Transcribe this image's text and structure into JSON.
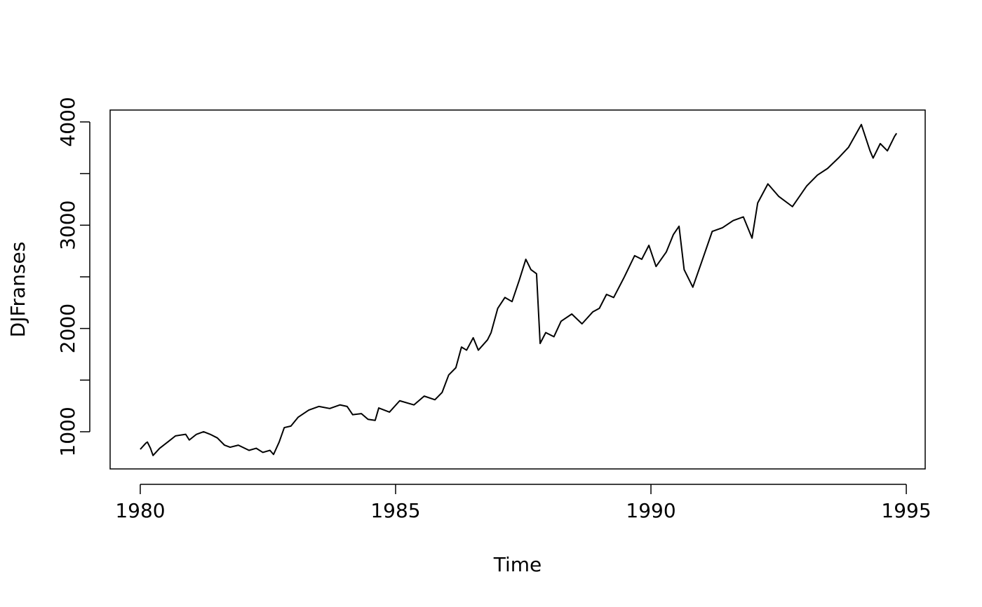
{
  "chart_data": {
    "type": "line",
    "xlabel": "Time",
    "ylabel": "DJFranses",
    "x": [
      1980.0,
      1980.11,
      1980.14,
      1980.2,
      1980.25,
      1980.38,
      1980.55,
      1980.69,
      1980.89,
      1980.96,
      1981.1,
      1981.24,
      1981.37,
      1981.51,
      1981.65,
      1981.76,
      1981.92,
      1982.13,
      1982.27,
      1982.4,
      1982.54,
      1982.61,
      1982.72,
      1982.82,
      1982.95,
      1983.09,
      1983.3,
      1983.5,
      1983.71,
      1983.91,
      1984.05,
      1984.16,
      1984.33,
      1984.46,
      1984.6,
      1984.67,
      1984.88,
      1985.08,
      1985.36,
      1985.56,
      1985.77,
      1985.91,
      1986.04,
      1986.18,
      1986.29,
      1986.39,
      1986.52,
      1986.62,
      1986.8,
      1986.87,
      1987.0,
      1987.14,
      1987.28,
      1987.42,
      1987.55,
      1987.65,
      1987.76,
      1987.83,
      1987.94,
      1988.1,
      1988.24,
      1988.45,
      1988.65,
      1988.86,
      1988.99,
      1989.13,
      1989.27,
      1989.48,
      1989.68,
      1989.82,
      1989.96,
      1990.1,
      1990.3,
      1990.44,
      1990.55,
      1990.65,
      1990.82,
      1990.99,
      1991.2,
      1991.4,
      1991.61,
      1991.81,
      1991.98,
      1992.09,
      1992.29,
      1992.5,
      1992.77,
      1993.05,
      1993.26,
      1993.46,
      1993.67,
      1993.87,
      1994.12,
      1994.29,
      1994.35,
      1994.49,
      1994.63,
      1994.77,
      1994.81
    ],
    "series": [
      {
        "name": "DJFranses",
        "color": "#000000",
        "values": [
          830,
          890,
          900,
          840,
          770,
          840,
          905,
          960,
          975,
          920,
          975,
          1000,
          975,
          940,
          870,
          850,
          870,
          820,
          840,
          800,
          820,
          780,
          900,
          1040,
          1055,
          1140,
          1210,
          1245,
          1225,
          1260,
          1245,
          1165,
          1175,
          1120,
          1110,
          1230,
          1190,
          1300,
          1260,
          1345,
          1310,
          1380,
          1550,
          1620,
          1820,
          1790,
          1910,
          1790,
          1890,
          1960,
          2195,
          2300,
          2260,
          2465,
          2670,
          2570,
          2530,
          1855,
          1960,
          1920,
          2070,
          2140,
          2045,
          2160,
          2195,
          2330,
          2300,
          2500,
          2705,
          2670,
          2805,
          2600,
          2740,
          2910,
          2990,
          2570,
          2400,
          2640,
          2940,
          2975,
          3045,
          3080,
          2875,
          3215,
          3400,
          3280,
          3180,
          3380,
          3485,
          3550,
          3650,
          3755,
          3975,
          3720,
          3650,
          3790,
          3720,
          3860,
          3890
        ]
      }
    ],
    "xlim": [
      1979.41,
      1995.37
    ],
    "xticks": [
      1980,
      1985,
      1990,
      1995
    ],
    "ylim": [
      640,
      4115
    ],
    "yticks": [
      1000,
      {
        "value": 1500,
        "label": null
      },
      2000,
      {
        "value": 2500,
        "label": null
      },
      3000,
      {
        "value": 3500,
        "label": null
      },
      4000
    ]
  }
}
